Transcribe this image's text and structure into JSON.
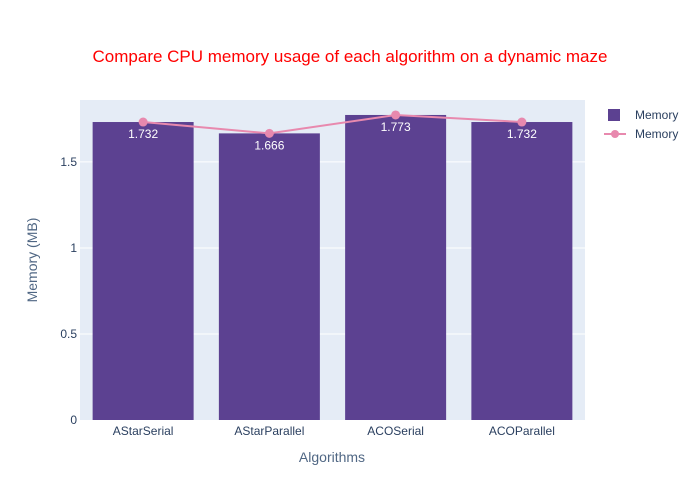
{
  "chart_data": {
    "type": "bar",
    "title": "Compare CPU memory usage of each algorithm on a dynamic maze",
    "xlabel": "Algorithms",
    "ylabel": "Memory (MB)",
    "categories": [
      "AStarSerial",
      "AStarParallel",
      "ACOSerial",
      "ACOParallel"
    ],
    "ylim": [
      0,
      1.86
    ],
    "yticks": [
      0,
      0.5,
      1,
      1.5
    ],
    "ytick_labels": [
      "0",
      "0.5",
      "1",
      "1.5"
    ],
    "grid": true,
    "legend_position": "top-right",
    "series": [
      {
        "name": "Memory",
        "kind": "bar",
        "values": [
          1.732,
          1.666,
          1.773,
          1.732
        ],
        "labels": [
          "1.732",
          "1.666",
          "1.773",
          "1.732"
        ],
        "color": "#5c4191"
      },
      {
        "name": "Memory",
        "kind": "line",
        "values": [
          1.732,
          1.666,
          1.773,
          1.732
        ],
        "color": "#e889ae"
      }
    ],
    "colors": {
      "title": "#ff0000",
      "axis_label": "#506784",
      "tick": "#2a3f5f",
      "plot_bg": "#e5ecf6",
      "grid": "#ffffff",
      "bar_label": "#ffffff"
    }
  }
}
